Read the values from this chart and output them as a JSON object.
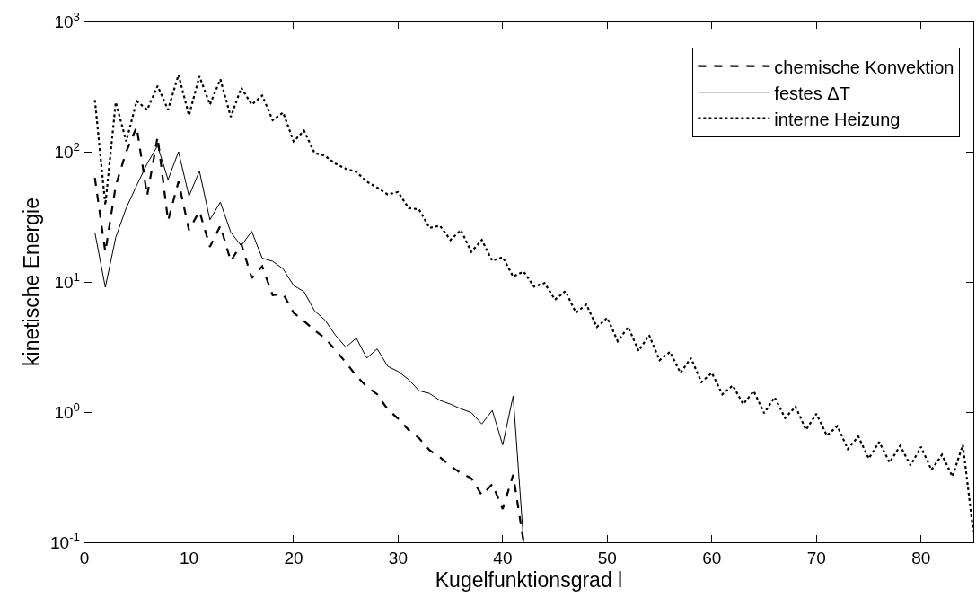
{
  "chart_data": {
    "type": "line",
    "xlabel": "Kugelfunktionsgrad l",
    "ylabel": "kinetische Energie",
    "log": "y",
    "grid": false,
    "legend": "top right",
    "marker": "none",
    "xlim": [
      0,
      85
    ],
    "xticks": [
      0,
      10,
      20,
      30,
      40,
      50,
      60,
      70,
      80
    ],
    "ylim": [
      0.1,
      1000
    ],
    "yticks": [
      {
        "value": 0.1,
        "label": "10$^{-1}$"
      },
      {
        "value": 1,
        "label": "10$^{0}$"
      },
      {
        "value": 10,
        "label": "10$^{1}$"
      },
      {
        "value": 100,
        "label": "10$^{2}$"
      },
      {
        "value": 1000,
        "label": "10$^{3}$"
      }
    ],
    "series": [
      {
        "name": "chemische Konvektion",
        "color": "#000000",
        "line_style": "dashed",
        "x": [
          1,
          2,
          3,
          4,
          5,
          6,
          7,
          8,
          9,
          10,
          11,
          12,
          13,
          14,
          15,
          16,
          17,
          18,
          19,
          20,
          21,
          22,
          23,
          24,
          25,
          26,
          27,
          28,
          29,
          30,
          31,
          32,
          33,
          34,
          35,
          36,
          37,
          38,
          39,
          40,
          41,
          42
        ],
        "values": [
          63,
          17,
          55,
          100,
          155,
          46,
          130,
          29.5,
          59,
          25,
          35,
          18.6,
          27,
          14.4,
          19.6,
          10.7,
          13.2,
          7.9,
          8.1,
          5.8,
          5.0,
          4.25,
          3.7,
          3.0,
          2.4,
          1.9,
          1.57,
          1.37,
          1.05,
          0.89,
          0.73,
          0.63,
          0.51,
          0.45,
          0.385,
          0.34,
          0.31,
          0.23,
          0.28,
          0.18,
          0.33,
          0.1
        ]
      },
      {
        "name": "festes ΔT",
        "color": "#000000",
        "line_style": "solid",
        "x": [
          1,
          2,
          3,
          4,
          5,
          6,
          7,
          8,
          9,
          10,
          11,
          12,
          13,
          14,
          15,
          16,
          17,
          18,
          19,
          20,
          21,
          22,
          23,
          24,
          25,
          26,
          27,
          28,
          29,
          30,
          31,
          32,
          33,
          34,
          35,
          36,
          37,
          38,
          39,
          40,
          41,
          42
        ],
        "values": [
          24,
          9.1,
          22,
          37,
          55,
          81,
          111,
          61,
          100,
          45.6,
          71,
          30,
          41,
          24,
          19,
          24.5,
          15.2,
          14.4,
          12.6,
          9.4,
          8.4,
          6.0,
          5.1,
          3.9,
          3.15,
          3.7,
          2.6,
          3.06,
          2.25,
          2.05,
          1.78,
          1.46,
          1.39,
          1.23,
          1.15,
          1.06,
          0.99,
          0.81,
          1.03,
          0.56,
          1.33,
          0.1
        ]
      },
      {
        "name": "interne Heizung",
        "color": "#000000",
        "line_style": "dotted",
        "x": [
          1,
          2,
          3,
          4,
          5,
          6,
          7,
          8,
          9,
          10,
          11,
          12,
          13,
          14,
          15,
          16,
          17,
          18,
          19,
          20,
          21,
          22,
          23,
          24,
          25,
          26,
          27,
          28,
          29,
          30,
          31,
          32,
          33,
          34,
          35,
          36,
          37,
          38,
          39,
          40,
          41,
          42,
          43,
          44,
          45,
          46,
          47,
          48,
          49,
          50,
          51,
          52,
          53,
          54,
          55,
          56,
          57,
          58,
          59,
          60,
          61,
          62,
          63,
          64,
          65,
          66,
          67,
          68,
          69,
          70,
          71,
          72,
          73,
          74,
          75,
          76,
          77,
          78,
          79,
          80,
          81,
          82,
          83,
          84,
          85
        ],
        "values": [
          250,
          39,
          240,
          120,
          245,
          210,
          320,
          210,
          390,
          190,
          380,
          230,
          360,
          185,
          310,
          230,
          270,
          175,
          200,
          120,
          145,
          98,
          93,
          81,
          74,
          70,
          59,
          53,
          47,
          49,
          37,
          36,
          26,
          27,
          21,
          25,
          17,
          21,
          14.5,
          15.5,
          11,
          12,
          9.2,
          9.8,
          7.3,
          8.5,
          5.8,
          6.7,
          4.5,
          5.3,
          3.5,
          4.5,
          2.95,
          3.9,
          2.5,
          2.9,
          2.0,
          2.6,
          1.7,
          2.0,
          1.37,
          1.6,
          1.15,
          1.45,
          0.98,
          1.3,
          0.9,
          1.1,
          0.73,
          0.97,
          0.66,
          0.78,
          0.52,
          0.65,
          0.44,
          0.59,
          0.41,
          0.55,
          0.39,
          0.54,
          0.36,
          0.47,
          0.32,
          0.56,
          0.12
        ]
      }
    ]
  }
}
